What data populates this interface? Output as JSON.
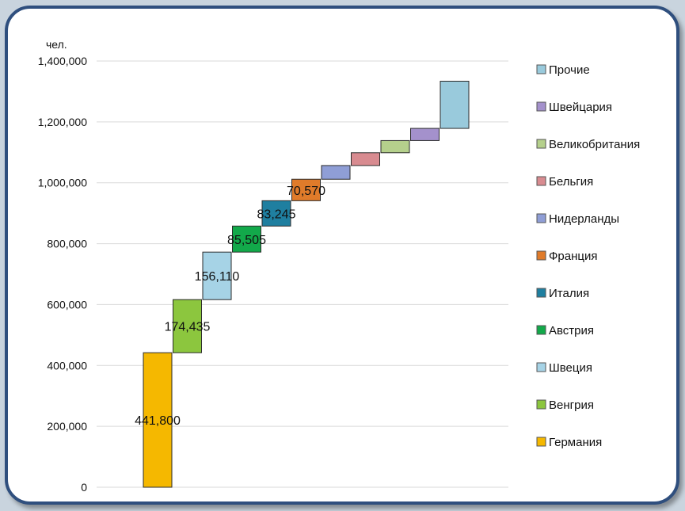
{
  "chart_data": {
    "type": "bar",
    "subtype": "waterfall",
    "unit_label": "чел.",
    "ylim": [
      0,
      1400000
    ],
    "yticks": [
      0,
      200000,
      400000,
      600000,
      800000,
      1000000,
      1200000,
      1400000
    ],
    "ytick_labels": [
      "0",
      "200,000",
      "400,000",
      "600,000",
      "800,000",
      "1,000,000",
      "1,200,000",
      "1,400,000"
    ],
    "grid": true,
    "legend_position": "right",
    "categories": [
      "Германия",
      "Венгрия",
      "Швеция",
      "Австрия",
      "Италия",
      "Франция",
      "Нидерланды",
      "Бельгия",
      "Великобритания",
      "Швейцария",
      "Прочие"
    ],
    "values": [
      441800,
      174435,
      156110,
      85505,
      83245,
      70570,
      45000,
      42000,
      40000,
      40000,
      155000
    ],
    "data_labels": [
      "441,800",
      "174,435",
      "156,110",
      "85,505",
      "83,245",
      "70,570",
      "",
      "",
      "",
      "",
      ""
    ],
    "colors": [
      "#f5b800",
      "#8cc63e",
      "#a6d3e6",
      "#12a94a",
      "#1f7fa0",
      "#e07b2a",
      "#8f9ed6",
      "#d88b90",
      "#b5d08c",
      "#a491cc",
      "#99cadc"
    ]
  }
}
